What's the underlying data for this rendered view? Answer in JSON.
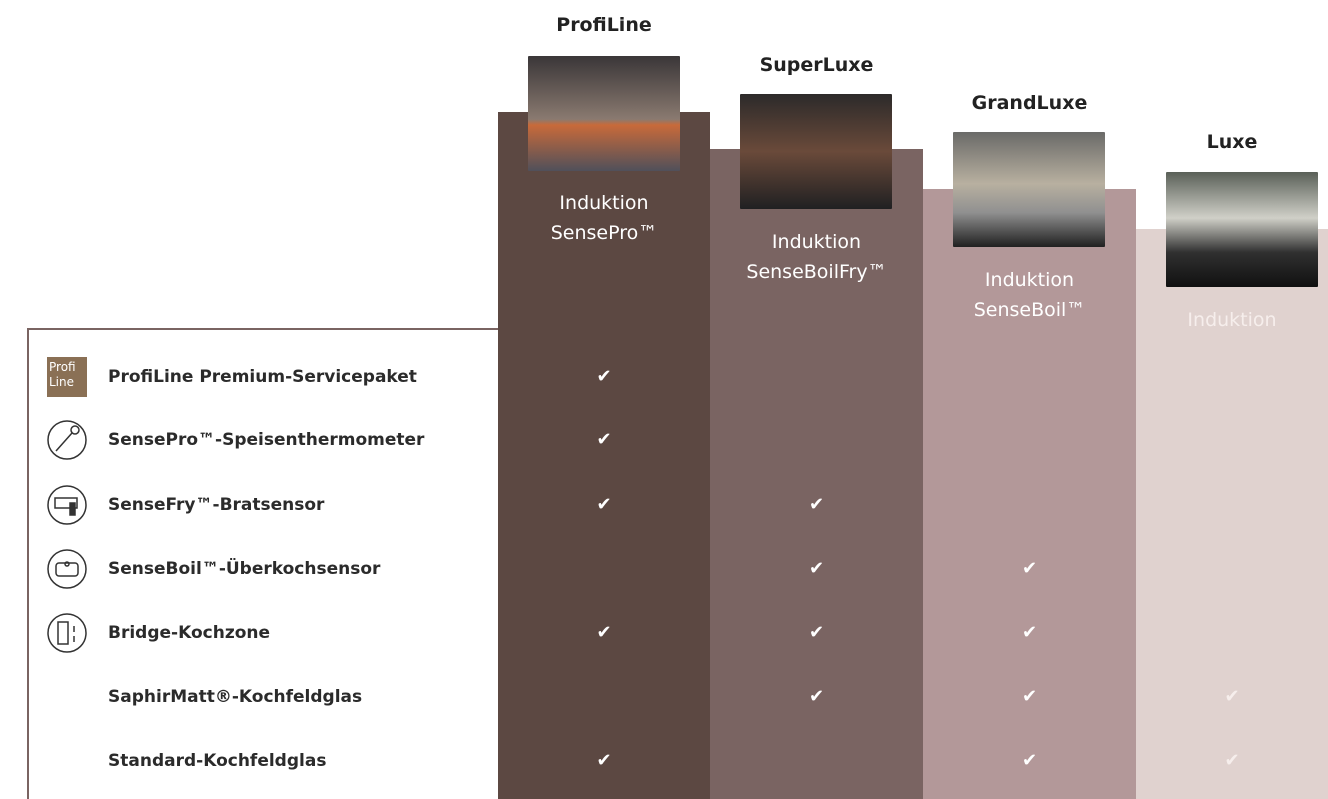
{
  "columns": [
    {
      "name": "ProfiLine",
      "subtitle": [
        "Induktion",
        "SensePro™"
      ]
    },
    {
      "name": "SuperLuxe",
      "subtitle": [
        "Induktion",
        "SenseBoilFry™"
      ]
    },
    {
      "name": "GrandLuxe",
      "subtitle": [
        "Induktion",
        "SenseBoil™"
      ]
    },
    {
      "name": "Luxe",
      "subtitle": [
        "Induktion"
      ]
    }
  ],
  "features": [
    {
      "badge": [
        "Profi",
        "Line"
      ],
      "label": "ProfiLine Premium-Servicepaket"
    },
    {
      "label": "SensePro™-Speisenthermometer"
    },
    {
      "label": "SenseFry™-Bratsensor"
    },
    {
      "label": "SenseBoil™-Überkochsensor"
    },
    {
      "label": "Bridge-Kochzone"
    },
    {
      "label": "SaphirMatt®-Kochfeldglas"
    },
    {
      "label": "Standard-Kochfeldglas"
    }
  ],
  "checks": [
    [
      "✔",
      null,
      null,
      null
    ],
    [
      "✔",
      null,
      null,
      null
    ],
    [
      "✔",
      "✔",
      null,
      null
    ],
    [
      null,
      "✔",
      "✔",
      null
    ],
    [
      "✔",
      "✔",
      "✔",
      null
    ],
    [
      null,
      "✔",
      "✔",
      "✔"
    ],
    [
      "✔",
      null,
      "✔",
      "✔"
    ]
  ]
}
